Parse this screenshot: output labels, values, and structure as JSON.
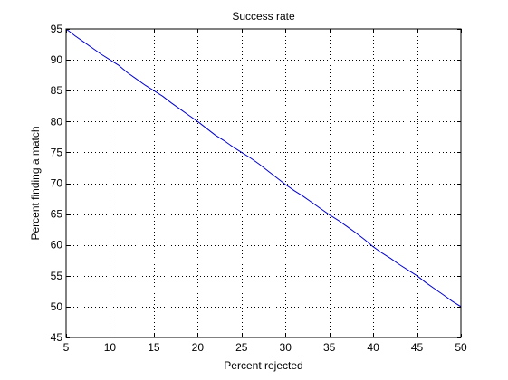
{
  "chart_data": {
    "type": "line",
    "title": "Success rate",
    "xlabel": "Percent rejected",
    "ylabel": "Percent finding a match",
    "xlim": [
      5,
      50
    ],
    "ylim": [
      45,
      95
    ],
    "xticks": [
      5,
      10,
      15,
      20,
      25,
      30,
      35,
      40,
      45,
      50
    ],
    "yticks": [
      45,
      50,
      55,
      60,
      65,
      70,
      75,
      80,
      85,
      90,
      95
    ],
    "grid": true,
    "grid_style": "dotted",
    "series": [
      {
        "color": "#0000cc",
        "x": [
          5,
          6,
          7,
          8,
          9,
          10,
          11,
          12,
          13,
          14,
          15,
          16,
          17,
          18,
          19,
          20,
          21,
          22,
          23,
          24,
          25,
          26,
          27,
          28,
          29,
          30,
          31,
          32,
          33,
          34,
          35,
          36,
          37,
          38,
          39,
          40,
          41,
          42,
          43,
          44,
          45,
          46,
          47,
          48,
          49,
          50
        ],
        "y": [
          95.0,
          93.9,
          92.9,
          91.9,
          90.9,
          90.0,
          89.1,
          87.9,
          86.9,
          85.9,
          85.0,
          84.1,
          83.0,
          82.0,
          81.0,
          80.0,
          78.9,
          77.8,
          76.9,
          75.9,
          75.0,
          74.1,
          73.1,
          72.0,
          70.9,
          69.8,
          68.8,
          67.9,
          66.9,
          65.9,
          64.9,
          64.0,
          63.0,
          62.0,
          60.9,
          59.7,
          58.7,
          57.8,
          56.8,
          55.9,
          55.0,
          53.9,
          52.9,
          51.9,
          50.9,
          50.0
        ]
      }
    ]
  }
}
